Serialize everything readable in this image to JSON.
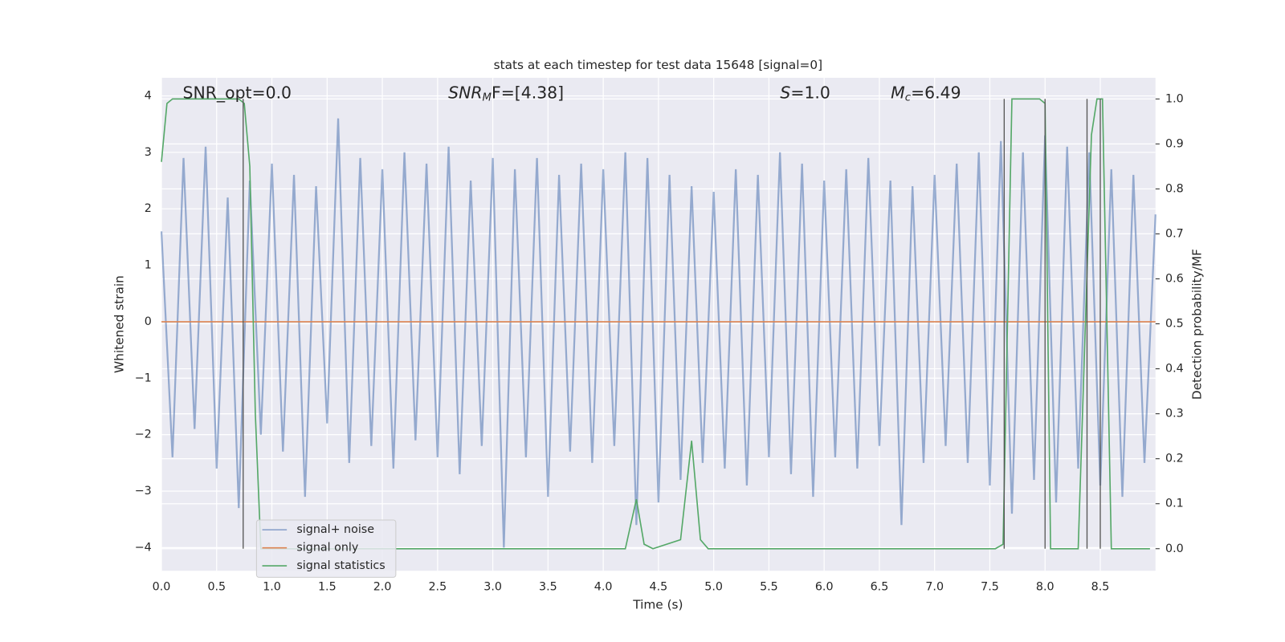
{
  "chart_data": {
    "type": "line",
    "title": "stats at each timestep for test data 15648 [signal=0]",
    "xlabel": "Time (s)",
    "ylabel": "Whitened strain",
    "y2label": "Detection probability/MF",
    "annotations": [
      "SNR_opt=0.0",
      {
        "base": "SNR",
        "sub": "M",
        "rest": "F=[4.38]"
      },
      {
        "base": "S",
        "rest": "=1.0"
      },
      {
        "base": "M",
        "sub": "c",
        "rest": "=6.49"
      }
    ],
    "xlim": [
      0,
      9.0
    ],
    "xticks": [
      {
        "value": 0,
        "label": "0.0"
      },
      0.5,
      {
        "value": 1,
        "label": "1.0"
      },
      1.5,
      {
        "value": 2,
        "label": "2.0"
      },
      2.5,
      {
        "value": 3,
        "label": "3.0"
      },
      3.5,
      {
        "value": 4,
        "label": "4.0"
      },
      4.5,
      {
        "value": 5,
        "label": "5.0"
      },
      5.5,
      {
        "value": 6,
        "label": "6.0"
      },
      6.5,
      {
        "value": 7,
        "label": "7.0"
      },
      7.5,
      {
        "value": 8,
        "label": "8.0"
      },
      8.5
    ],
    "ylim": [
      -4.41,
      4.32
    ],
    "yticks": [
      {
        "value": -4,
        "label": "−4"
      },
      {
        "value": -3,
        "label": "−3"
      },
      {
        "value": -2,
        "label": "−2"
      },
      {
        "value": -1,
        "label": "−1"
      },
      0,
      1,
      2,
      3,
      4
    ],
    "y2lim": [
      -0.049,
      1.047
    ],
    "y2ticks": [
      {
        "value": 0,
        "label": "0.0"
      },
      0.1,
      0.2,
      0.3,
      0.4,
      0.5,
      0.6,
      0.7,
      0.8,
      0.9,
      {
        "value": 1,
        "label": "1.0"
      }
    ],
    "grid": true,
    "legend": "lower left",
    "vline_color": "#555555",
    "vlines": [
      0.74,
      7.63,
      8.0,
      8.38,
      8.5
    ],
    "series": [
      {
        "name": "signal+ noise",
        "color": "#4c72b0",
        "x": [
          0,
          0.1,
          0.2,
          0.3,
          0.4,
          0.5,
          0.6,
          0.7,
          0.8,
          0.9,
          1,
          1.1,
          1.2,
          1.3,
          1.4,
          1.5,
          1.6,
          1.7,
          1.8,
          1.9,
          2,
          2.1,
          2.2,
          2.3,
          2.4,
          2.5,
          2.6,
          2.7,
          2.8,
          2.9,
          3,
          3.1,
          3.2,
          3.3,
          3.4,
          3.5,
          3.6,
          3.7,
          3.8,
          3.9,
          4,
          4.1,
          4.2,
          4.3,
          4.4,
          4.5,
          4.6,
          4.7,
          4.8,
          4.9,
          5,
          5.1,
          5.2,
          5.3,
          5.4,
          5.5,
          5.6,
          5.7,
          5.8,
          5.9,
          6,
          6.1,
          6.2,
          6.3,
          6.4,
          6.5,
          6.6,
          6.7,
          6.8,
          6.9,
          7,
          7.1,
          7.2,
          7.3,
          7.4,
          7.5,
          7.6,
          7.7,
          7.8,
          7.9,
          8,
          8.1,
          8.2,
          8.3,
          8.4,
          8.5,
          8.6,
          8.7,
          8.8,
          8.9,
          9
        ],
        "values": [
          1.6,
          -2.4,
          2.9,
          -1.9,
          3.1,
          -2.6,
          2.2,
          -3.3,
          2.5,
          -2.0,
          2.8,
          -2.3,
          2.6,
          -3.1,
          2.4,
          -1.8,
          3.6,
          -2.5,
          2.9,
          -2.2,
          2.7,
          -2.6,
          3.0,
          -2.1,
          2.8,
          -2.4,
          3.1,
          -2.7,
          2.5,
          -2.2,
          2.9,
          -4.0,
          2.7,
          -2.4,
          2.9,
          -3.1,
          2.6,
          -2.3,
          2.8,
          -2.5,
          2.7,
          -2.2,
          3.0,
          -3.6,
          2.9,
          -3.2,
          2.6,
          -2.8,
          2.4,
          -2.5,
          2.3,
          -2.6,
          2.7,
          -2.9,
          2.6,
          -2.4,
          3.0,
          -2.7,
          2.8,
          -3.1,
          2.5,
          -2.4,
          2.7,
          -2.6,
          2.9,
          -2.2,
          2.5,
          -3.6,
          2.4,
          -2.5,
          2.6,
          -2.2,
          2.8,
          -2.5,
          3.0,
          -2.9,
          3.2,
          -3.4,
          3.0,
          -2.8,
          3.3,
          -3.2,
          3.1,
          -2.6,
          3.0,
          -2.9,
          2.7,
          -3.1,
          2.6,
          -2.5,
          1.9
        ]
      },
      {
        "name": "signal only",
        "color": "#dd8452",
        "x": [
          0,
          9.0
        ],
        "values": [
          0,
          0
        ]
      },
      {
        "name": "signal statistics",
        "color": "#55a868",
        "axis": "y2",
        "x": [
          0,
          0.05,
          0.1,
          0.7,
          0.75,
          0.8,
          0.85,
          0.9,
          2.2,
          4.2,
          4.3,
          4.37,
          4.45,
          4.7,
          4.8,
          4.88,
          4.95,
          7.55,
          7.62,
          7.7,
          7.95,
          8.0,
          8.05,
          8.1,
          8.3,
          8.42,
          8.47,
          8.52,
          8.6,
          8.95
        ],
        "values": [
          0.86,
          0.99,
          1.0,
          1.0,
          0.99,
          0.85,
          0.3,
          0.0,
          0.0,
          0.0,
          0.11,
          0.01,
          0.0,
          0.02,
          0.24,
          0.02,
          0.0,
          0.0,
          0.01,
          1.0,
          1.0,
          0.99,
          0.0,
          0.0,
          0.0,
          0.92,
          1.0,
          1.0,
          0.0,
          0.0
        ]
      }
    ]
  }
}
